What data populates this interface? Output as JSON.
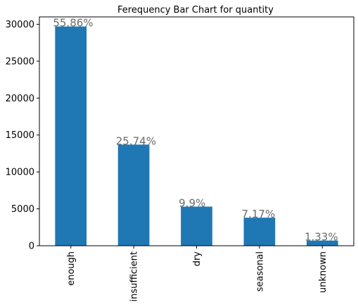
{
  "chart_data": {
    "type": "bar",
    "title": "Ferequency Bar Chart for quantity",
    "xlabel": "",
    "ylabel": "",
    "categories": [
      "enough",
      "insufficient",
      "dry",
      "seasonal",
      "unknown"
    ],
    "values": [
      29700,
      13700,
      5300,
      3800,
      700
    ],
    "data_labels": [
      "55.86%",
      "25.74%",
      "9.9%",
      "7.17%",
      "1.33%"
    ],
    "ylim": [
      0,
      31000
    ],
    "yticks": [
      0,
      5000,
      10000,
      15000,
      20000,
      25000,
      30000
    ],
    "grid": false,
    "legend": "none",
    "bar_color": "#1f77b4",
    "label_color": "#6b6b6b"
  }
}
